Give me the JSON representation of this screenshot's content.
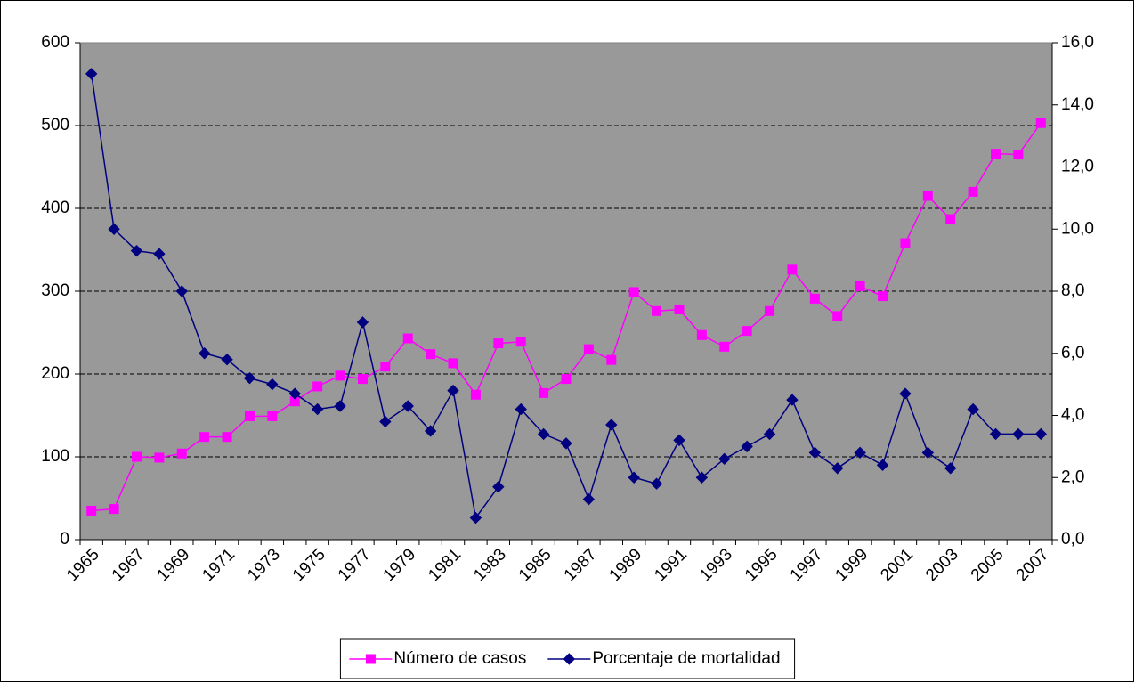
{
  "chart_data": {
    "type": "line",
    "categories": [
      "1965",
      null,
      "1967",
      null,
      "1969",
      null,
      "1971",
      null,
      "1973",
      null,
      "1975",
      null,
      "1977",
      null,
      "1979",
      null,
      "1981",
      null,
      "1983",
      null,
      "1985",
      null,
      "1987",
      null,
      "1989",
      null,
      "1991",
      null,
      "1993",
      null,
      "1995",
      null,
      "1997",
      null,
      "1999",
      null,
      "2001",
      null,
      "2003",
      null,
      "2005",
      null,
      "2007"
    ],
    "series": [
      {
        "name": "Número de casos",
        "color": "#ff00ff",
        "marker": "square",
        "values": [
          35,
          37,
          100,
          99,
          104,
          124,
          124,
          149,
          149,
          167,
          185,
          198,
          194,
          209,
          243,
          224,
          213,
          175,
          237,
          239,
          177,
          194,
          230,
          217,
          299,
          276,
          278,
          247,
          233,
          252,
          276,
          326,
          291,
          270,
          306,
          294,
          358,
          415,
          387,
          420,
          466,
          465,
          503
        ]
      },
      {
        "name": "Porcentaje de mortalidad",
        "color": "#000080",
        "marker": "diamond",
        "axis": "y2",
        "values": [
          15.0,
          10.0,
          9.3,
          9.2,
          8.0,
          6.0,
          5.8,
          5.2,
          5.0,
          4.7,
          4.2,
          4.3,
          7.0,
          3.8,
          4.3,
          3.5,
          4.8,
          0.7,
          1.7,
          4.2,
          3.4,
          3.1,
          1.3,
          3.7,
          2.0,
          1.8,
          3.2,
          2.0,
          2.6,
          3.0,
          3.4,
          4.5,
          2.8,
          2.3,
          2.8,
          2.4,
          4.7,
          2.8,
          2.3,
          4.2,
          3.4,
          3.4,
          3.4
        ]
      }
    ],
    "ylim": [
      0,
      600
    ],
    "yticks": [
      0,
      100,
      200,
      300,
      400,
      500,
      600
    ],
    "y2lim": [
      0,
      16
    ],
    "y2ticks": [
      {
        "value": 0,
        "label": "0,0"
      },
      {
        "value": 2,
        "label": "2,0"
      },
      {
        "value": 4,
        "label": "4,0"
      },
      {
        "value": 6,
        "label": "6,0"
      },
      {
        "value": 8,
        "label": "8,0"
      },
      {
        "value": 10,
        "label": "10,0"
      },
      {
        "value": 12,
        "label": "12,0"
      },
      {
        "value": 14,
        "label": "14,0"
      },
      {
        "value": 16,
        "label": "16,0"
      }
    ],
    "grid": true,
    "plot_background": "#999999",
    "legend": "bottom"
  }
}
